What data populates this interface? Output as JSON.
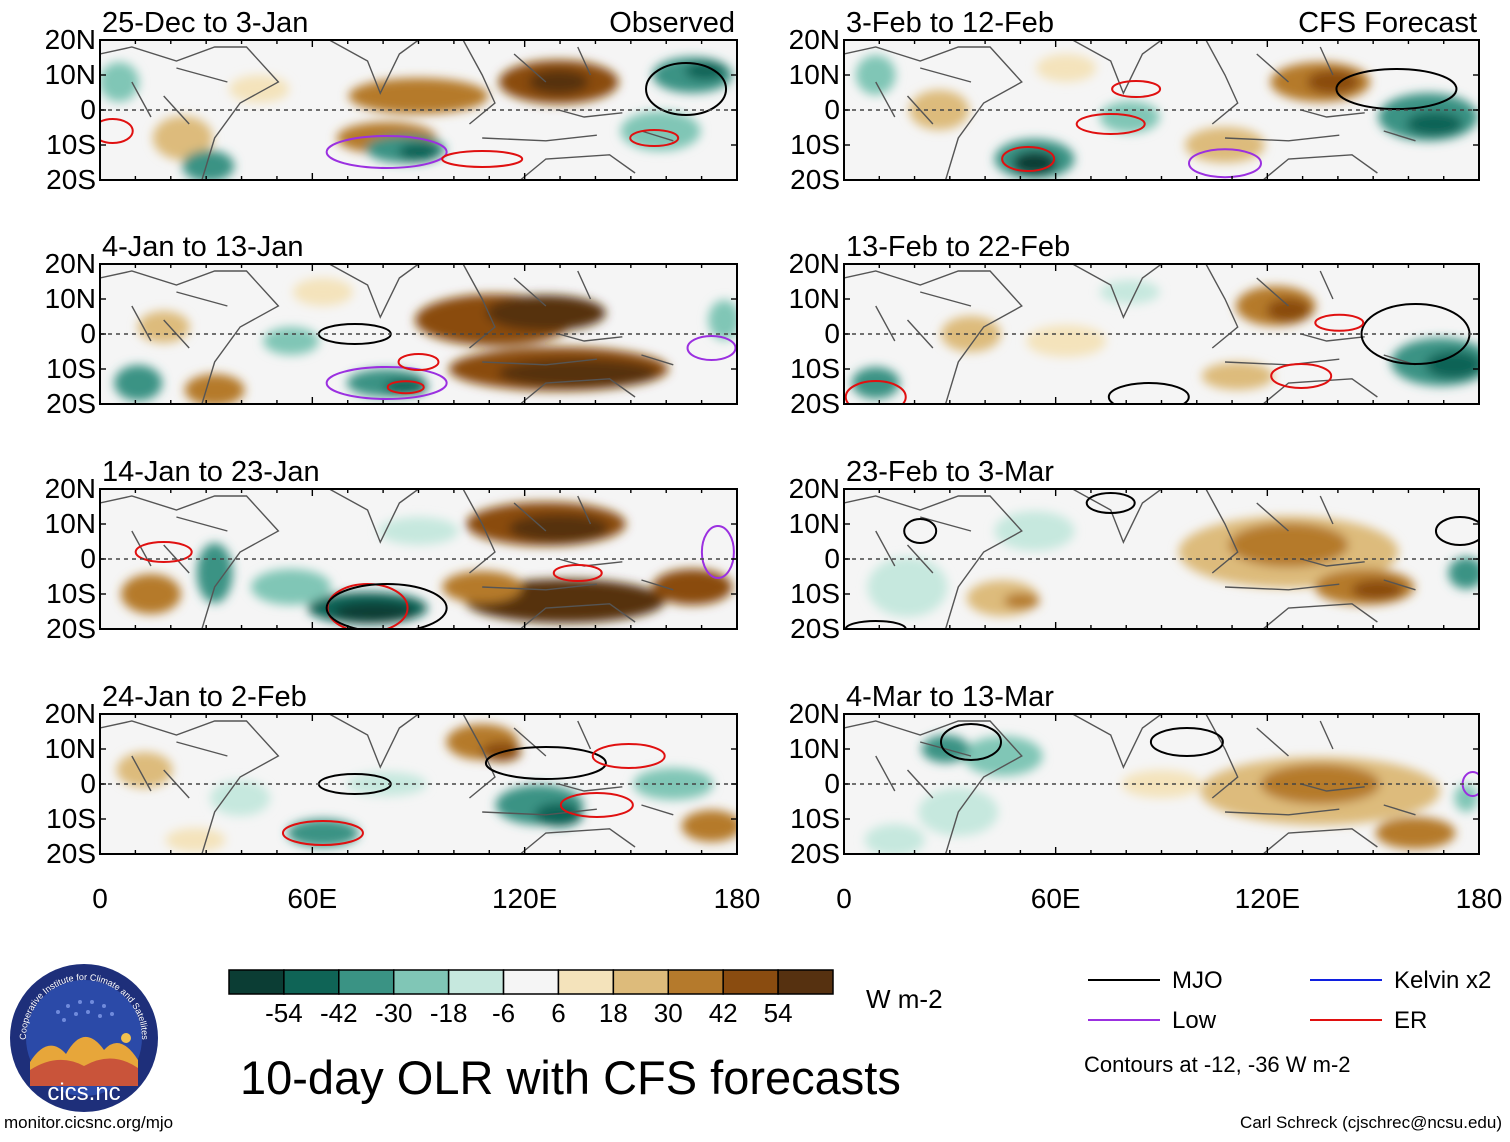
{
  "figure": {
    "title": "10-day OLR with CFS forecasts",
    "credit_left": "monitor.cicsnc.org/mjo",
    "credit_right": "Carl Schreck (cjschrec@ncsu.edu)",
    "logo_text": "cics.nc",
    "logo_ring_text": "Cooperative Institute for Climate and Satellites"
  },
  "columns": [
    {
      "header": "Observed"
    },
    {
      "header": "CFS Forecast"
    }
  ],
  "panels": [
    {
      "period": "25-Dec to 3-Jan",
      "source": "Observed"
    },
    {
      "period": "4-Jan to 13-Jan",
      "source": "Observed"
    },
    {
      "period": "14-Jan to 23-Jan",
      "source": "Observed"
    },
    {
      "period": "24-Jan to 2-Feb",
      "source": "Observed"
    },
    {
      "period": "3-Feb to 12-Feb",
      "source": "CFS Forecast"
    },
    {
      "period": "13-Feb to 22-Feb",
      "source": "CFS Forecast"
    },
    {
      "period": "23-Feb to 3-Mar",
      "source": "CFS Forecast"
    },
    {
      "period": "4-Mar to 13-Mar",
      "source": "CFS Forecast"
    }
  ],
  "axes": {
    "lat_labels": [
      "20N",
      "10N",
      "0",
      "10S",
      "20S"
    ],
    "lon_labels": [
      "0",
      "60E",
      "120E",
      "180"
    ]
  },
  "colorbar": {
    "units": "W m-2",
    "labels": [
      "-54",
      "-42",
      "-30",
      "-18",
      "-6",
      "6",
      "18",
      "30",
      "42",
      "54"
    ],
    "colors": [
      "#0b3d34",
      "#0f6456",
      "#3a9384",
      "#80c6b6",
      "#c6e8de",
      "#f5f5f5",
      "#f4e3bb",
      "#ddbb7b",
      "#b57a2c",
      "#8a4c10",
      "#563110"
    ]
  },
  "legend": {
    "items": [
      {
        "label": "MJO",
        "color": "#000000"
      },
      {
        "label": "Kelvin x2",
        "color": "#1020e0"
      },
      {
        "label": "Low",
        "color": "#9b30e0"
      },
      {
        "label": "ER",
        "color": "#e01010"
      }
    ],
    "note": "Contours at -12, -36 W m-2"
  }
}
